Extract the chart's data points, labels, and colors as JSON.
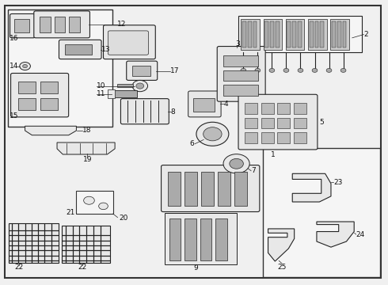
{
  "bg_color": "#f0f0f0",
  "border_color": "#333333",
  "line_color": "#222222",
  "fill_color": "#e8e8e8",
  "figsize": [
    4.9,
    3.6
  ],
  "dpi": 100
}
